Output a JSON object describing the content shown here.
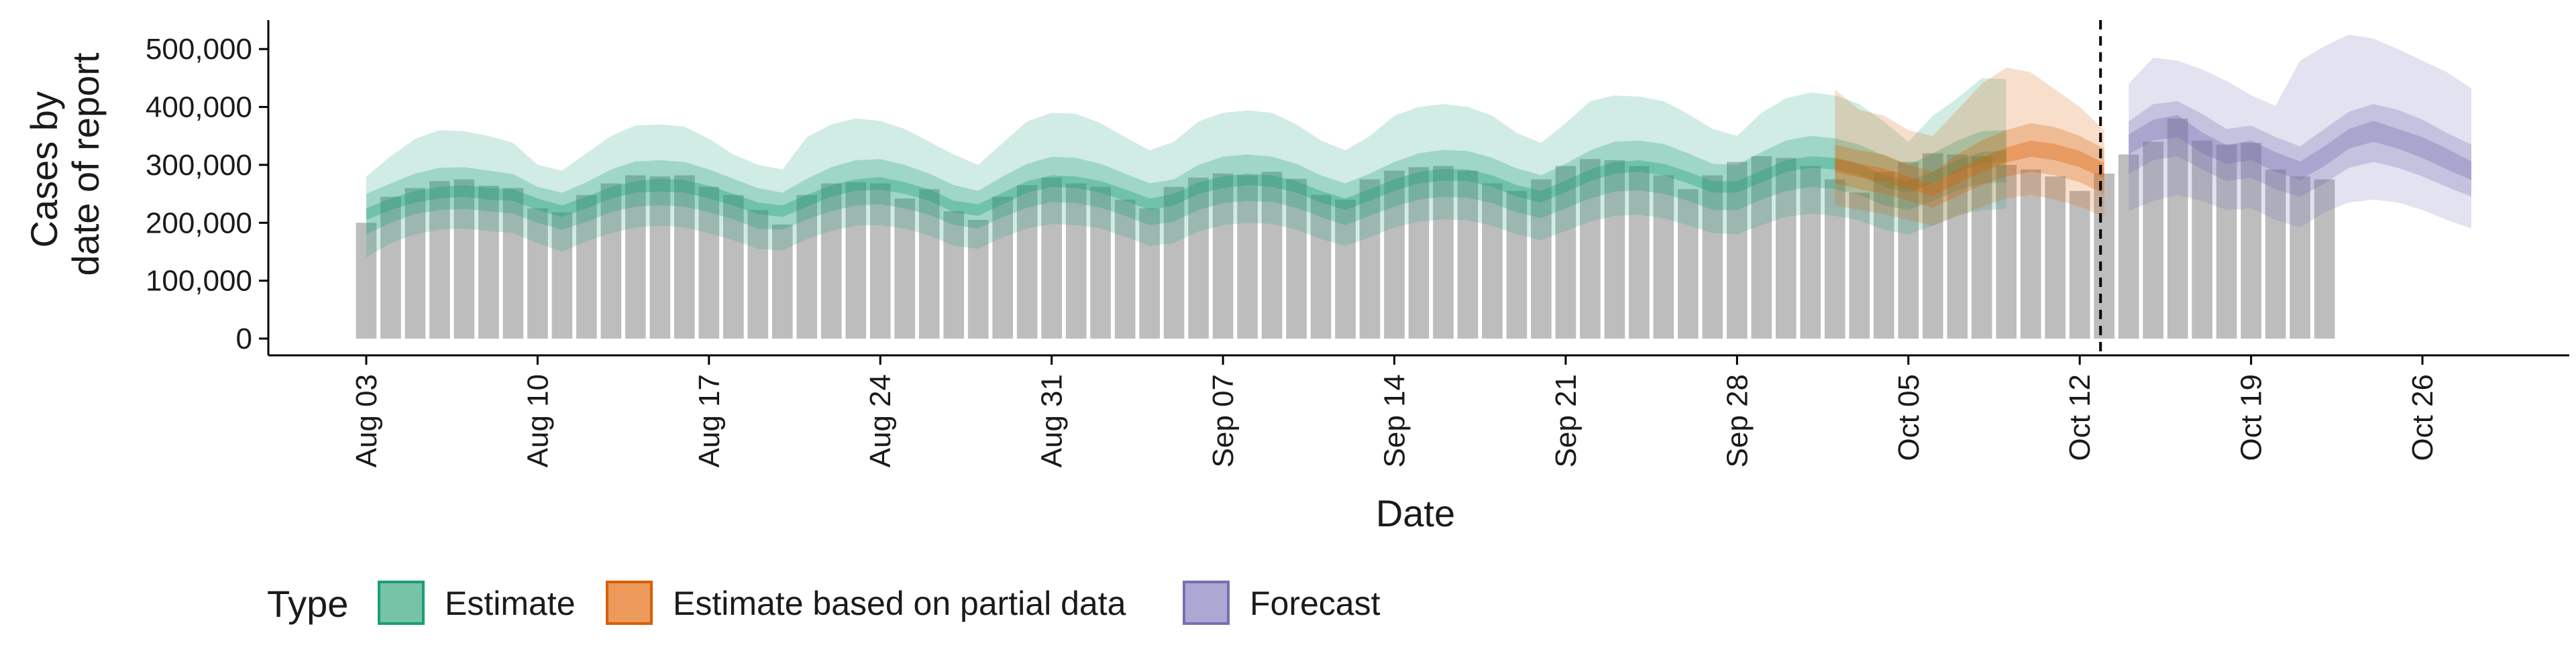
{
  "chart_data": {
    "type": "area",
    "xlabel": "Date",
    "ylabel_lines": [
      "Cases by",
      "date of report"
    ],
    "ylim": [
      0,
      550000
    ],
    "y_ticks": [
      0,
      100000,
      200000,
      300000,
      400000,
      500000
    ],
    "y_tick_labels": [
      "0",
      "100,000",
      "200,000",
      "300,000",
      "400,000",
      "500,000"
    ],
    "x_tick_dates": [
      "2020-08-03",
      "2020-08-10",
      "2020-08-17",
      "2020-08-24",
      "2020-08-31",
      "2020-09-07",
      "2020-09-14",
      "2020-09-21",
      "2020-09-28",
      "2020-10-05",
      "2020-10-12",
      "2020-10-19",
      "2020-10-26"
    ],
    "x_tick_labels": [
      "Aug 03",
      "Aug 10",
      "Aug 17",
      "Aug 24",
      "Aug 31",
      "Sep 07",
      "Sep 14",
      "Sep 21",
      "Sep 28",
      "Oct 05",
      "Oct 12",
      "Oct 19",
      "Oct 26"
    ],
    "x_range": [
      "2020-07-30",
      "2020-11-01"
    ],
    "forecast_start": "2020-10-13",
    "reported_cases": {
      "start_date": "2020-08-03",
      "values": [
        200000,
        245000,
        260000,
        272000,
        275000,
        264000,
        260000,
        225000,
        218000,
        248000,
        268000,
        282000,
        280000,
        282000,
        262000,
        248000,
        222000,
        197000,
        248000,
        268000,
        270000,
        268000,
        242000,
        258000,
        220000,
        205000,
        245000,
        265000,
        278000,
        268000,
        262000,
        240000,
        225000,
        262000,
        278000,
        285000,
        282000,
        288000,
        276000,
        248000,
        240000,
        275000,
        290000,
        296000,
        298000,
        290000,
        268000,
        255000,
        275000,
        298000,
        310000,
        308000,
        298000,
        282000,
        258000,
        282000,
        305000,
        315000,
        312000,
        298000,
        275000,
        252000,
        288000,
        305000,
        320000,
        318000,
        315000,
        300000,
        292000,
        280000,
        255000,
        285000,
        318000,
        340000,
        380000,
        342000,
        335000,
        338000,
        292000,
        280000,
        275000
      ]
    },
    "series": [
      {
        "name": "Estimate",
        "color": "#1b9e77",
        "start_date": "2020-08-03",
        "median": [
          215000,
          232000,
          245000,
          252000,
          255000,
          250000,
          248000,
          232000,
          220000,
          235000,
          252000,
          262000,
          265000,
          263000,
          253000,
          240000,
          225000,
          220000,
          238000,
          255000,
          265000,
          268000,
          260000,
          248000,
          228000,
          222000,
          242000,
          262000,
          272000,
          270000,
          262000,
          248000,
          232000,
          240000,
          260000,
          270000,
          275000,
          272000,
          262000,
          245000,
          232000,
          248000,
          265000,
          278000,
          283000,
          282000,
          272000,
          255000,
          245000,
          263000,
          282000,
          295000,
          298000,
          292000,
          278000,
          262000,
          262000,
          280000,
          298000,
          305000,
          302000,
          292000,
          272000,
          262000,
          278000,
          298000,
          312000,
          315000
        ],
        "lower90": [
          140000,
          165000,
          180000,
          188000,
          190000,
          186000,
          182000,
          165000,
          150000,
          168000,
          182000,
          192000,
          195000,
          192000,
          182000,
          170000,
          155000,
          152000,
          172000,
          186000,
          195000,
          196000,
          190000,
          178000,
          160000,
          155000,
          175000,
          190000,
          198000,
          196000,
          190000,
          176000,
          160000,
          165000,
          185000,
          196000,
          200000,
          198000,
          188000,
          172000,
          160000,
          175000,
          192000,
          202000,
          206000,
          204000,
          195000,
          180000,
          170000,
          186000,
          202000,
          212000,
          214000,
          208000,
          196000,
          182000,
          180000,
          196000,
          210000,
          216000,
          212000,
          204000,
          188000,
          180000,
          195000,
          212000,
          222000,
          224000
        ],
        "upper90": [
          280000,
          315000,
          345000,
          360000,
          358000,
          350000,
          338000,
          300000,
          290000,
          320000,
          350000,
          368000,
          370000,
          366000,
          345000,
          318000,
          300000,
          292000,
          348000,
          370000,
          380000,
          376000,
          362000,
          340000,
          318000,
          300000,
          338000,
          375000,
          390000,
          388000,
          372000,
          348000,
          325000,
          340000,
          375000,
          390000,
          394000,
          390000,
          370000,
          342000,
          325000,
          350000,
          385000,
          400000,
          405000,
          400000,
          385000,
          355000,
          338000,
          372000,
          410000,
          420000,
          418000,
          410000,
          388000,
          362000,
          350000,
          390000,
          415000,
          425000,
          420000,
          405000,
          375000,
          340000,
          385000,
          415000,
          450000,
          448000
        ],
        "lower50": [
          180000,
          200000,
          215000,
          222000,
          224000,
          220000,
          216000,
          200000,
          188000,
          202000,
          218000,
          228000,
          230000,
          228000,
          218000,
          206000,
          190000,
          188000,
          206000,
          220000,
          230000,
          232000,
          225000,
          214000,
          196000,
          190000,
          210000,
          226000,
          236000,
          234000,
          226000,
          212000,
          196000,
          202000,
          222000,
          234000,
          238000,
          236000,
          226000,
          210000,
          196000,
          212000,
          228000,
          240000,
          245000,
          243000,
          234000,
          218000,
          208000,
          225000,
          242000,
          254000,
          256000,
          250000,
          238000,
          222000,
          222000,
          240000,
          255000,
          262000,
          258000,
          248000,
          230000,
          222000,
          238000,
          256000,
          268000,
          270000
        ],
        "upper50": [
          250000,
          268000,
          285000,
          295000,
          296000,
          290000,
          284000,
          262000,
          252000,
          270000,
          292000,
          306000,
          308000,
          305000,
          292000,
          276000,
          260000,
          252000,
          276000,
          296000,
          308000,
          310000,
          300000,
          285000,
          265000,
          255000,
          280000,
          302000,
          314000,
          312000,
          302000,
          285000,
          268000,
          275000,
          300000,
          314000,
          318000,
          314000,
          302000,
          282000,
          268000,
          285000,
          305000,
          320000,
          326000,
          324000,
          312000,
          294000,
          282000,
          302000,
          325000,
          340000,
          342000,
          336000,
          320000,
          302000,
          300000,
          322000,
          342000,
          350000,
          346000,
          335000,
          316000,
          300000,
          320000,
          342000,
          358000,
          360000
        ],
        "lower20": [
          205000,
          222000,
          235000,
          242000,
          245000,
          240000,
          238000,
          222000,
          210000,
          225000,
          242000,
          252000,
          254000,
          252000,
          242000,
          230000,
          215000,
          210000,
          228000,
          245000,
          255000,
          257000,
          250000,
          238000,
          218000,
          212000,
          232000,
          252000,
          262000,
          260000,
          252000,
          238000,
          222000,
          230000,
          250000,
          260000,
          265000,
          262000,
          252000,
          235000,
          222000,
          238000,
          255000,
          268000,
          273000,
          272000,
          262000,
          245000,
          235000,
          253000,
          272000,
          285000,
          288000,
          282000,
          268000,
          252000,
          252000,
          270000,
          288000,
          295000,
          292000,
          282000,
          262000,
          252000,
          268000,
          288000,
          302000,
          305000
        ],
        "upper20": [
          225000,
          242000,
          255000,
          262000,
          265000,
          260000,
          258000,
          242000,
          230000,
          245000,
          262000,
          272000,
          276000,
          274000,
          264000,
          250000,
          235000,
          230000,
          248000,
          265000,
          275000,
          279000,
          270000,
          258000,
          238000,
          232000,
          252000,
          272000,
          282000,
          280000,
          272000,
          258000,
          242000,
          250000,
          270000,
          280000,
          285000,
          282000,
          272000,
          255000,
          242000,
          258000,
          275000,
          288000,
          293000,
          292000,
          282000,
          265000,
          255000,
          273000,
          292000,
          305000,
          308000,
          302000,
          288000,
          272000,
          272000,
          290000,
          308000,
          315000,
          312000,
          302000,
          282000,
          272000,
          288000,
          308000,
          322000,
          325000
        ]
      },
      {
        "name": "Estimate based on partial data",
        "color": "#d95f02",
        "start_date": "2020-10-02",
        "median": [
          300000,
          290000,
          282000,
          268000,
          255000,
          280000,
          300000,
          318000,
          328000,
          322000,
          310000,
          290000
        ],
        "lower90": [
          230000,
          222000,
          215000,
          205000,
          195000,
          212000,
          228000,
          242000,
          248000,
          240000,
          228000,
          210000
        ],
        "upper90": [
          430000,
          395000,
          385000,
          360000,
          350000,
          395000,
          440000,
          468000,
          460000,
          430000,
          400000,
          360000
        ],
        "lower50": [
          268000,
          258000,
          250000,
          238000,
          226000,
          246000,
          265000,
          280000,
          288000,
          282000,
          270000,
          250000
        ],
        "upper50": [
          335000,
          325000,
          318000,
          300000,
          288000,
          318000,
          342000,
          360000,
          372000,
          365000,
          350000,
          328000
        ],
        "lower20": [
          288000,
          278000,
          270000,
          258000,
          246000,
          268000,
          288000,
          304000,
          314000,
          308000,
          296000,
          277000
        ],
        "upper20": [
          312000,
          302000,
          294000,
          280000,
          266000,
          292000,
          312000,
          330000,
          342000,
          336000,
          324000,
          303000
        ]
      },
      {
        "name": "Forecast",
        "color": "#7570b3",
        "start_date": "2020-10-14",
        "median": [
          335000,
          360000,
          368000,
          338000,
          318000,
          325000,
          305000,
          290000,
          315000,
          345000,
          358000,
          345000,
          330000,
          310000,
          290000
        ],
        "lower90": [
          220000,
          238000,
          248000,
          238000,
          222000,
          225000,
          205000,
          192000,
          218000,
          235000,
          240000,
          235000,
          222000,
          205000,
          190000
        ],
        "upper90": [
          440000,
          485000,
          480000,
          465000,
          445000,
          420000,
          402000,
          480000,
          505000,
          525000,
          518000,
          500000,
          480000,
          460000,
          432000
        ],
        "lower50": [
          285000,
          308000,
          315000,
          292000,
          272000,
          278000,
          258000,
          245000,
          268000,
          295000,
          305000,
          295000,
          280000,
          262000,
          245000
        ],
        "upper50": [
          375000,
          405000,
          410000,
          388000,
          362000,
          368000,
          348000,
          332000,
          362000,
          392000,
          405000,
          395000,
          378000,
          355000,
          335000
        ],
        "lower20": [
          318000,
          342000,
          348000,
          320000,
          302000,
          308000,
          288000,
          274000,
          298000,
          328000,
          340000,
          328000,
          312000,
          292000,
          274000
        ],
        "upper20": [
          352000,
          378000,
          386000,
          356000,
          334000,
          342000,
          322000,
          306000,
          332000,
          362000,
          376000,
          362000,
          348000,
          328000,
          306000
        ]
      }
    ],
    "legend": {
      "title": "Type",
      "position": "bottom",
      "items": [
        {
          "label": "Estimate",
          "fill": "#76c3a6",
          "stroke": "#1b9e77"
        },
        {
          "label": "Estimate based on partial data",
          "fill": "#ec9a5c",
          "stroke": "#d95f02"
        },
        {
          "label": "Forecast",
          "fill": "#aba8d3",
          "stroke": "#7570b3"
        }
      ]
    },
    "bar_color": "#bdbdbd",
    "grid": false
  }
}
